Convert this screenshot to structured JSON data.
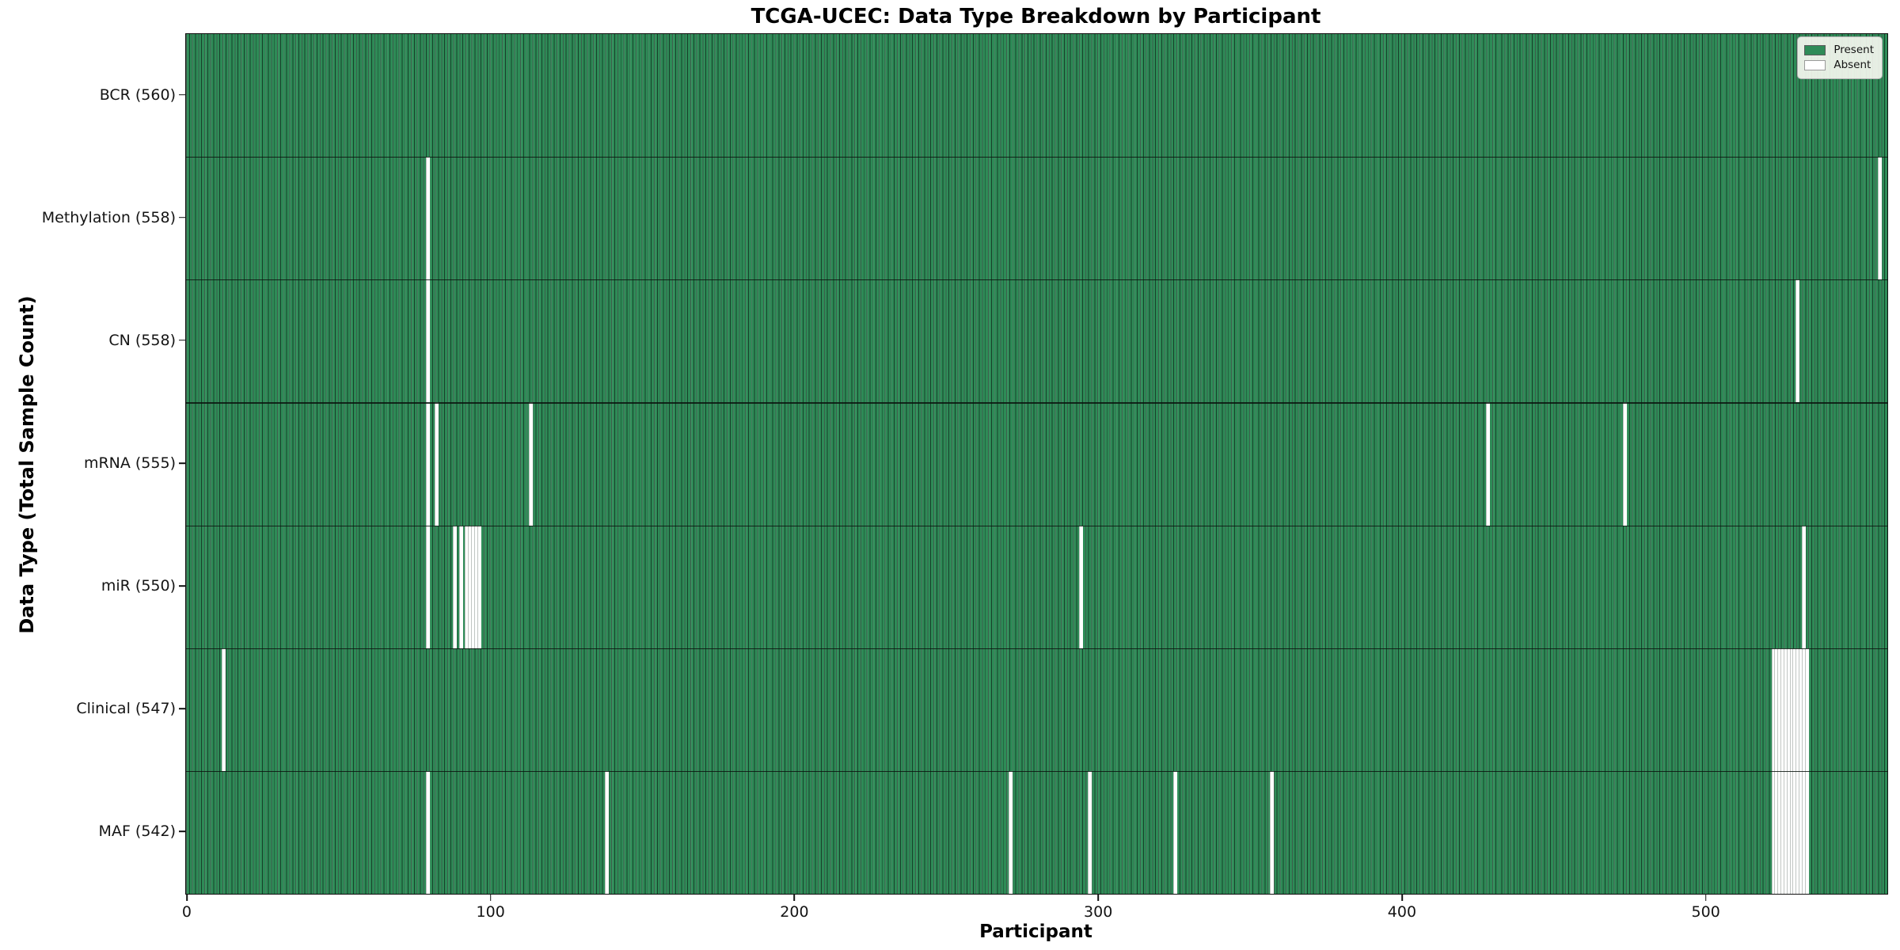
{
  "chart_data": {
    "type": "heatmap",
    "title": "TCGA-UCEC: Data Type Breakdown by Participant",
    "xlabel": "Participant",
    "ylabel": "Data Type (Total Sample Count)",
    "n_participants": 560,
    "x_ticks": [
      0,
      100,
      200,
      300,
      400,
      500
    ],
    "grid": false,
    "legend_position": "upper right",
    "legend": [
      {
        "label": "Present",
        "color": "#2e8b57"
      },
      {
        "label": "Absent",
        "color": "#ffffff"
      }
    ],
    "colors": {
      "present": "#2e8b57",
      "absent": "#ffffff",
      "bar_edge": "#17402a",
      "axis": "#111111"
    },
    "rows": [
      {
        "label": "BCR (560)",
        "data_type": "BCR",
        "total": 560,
        "absent_participants": []
      },
      {
        "label": "Methylation (558)",
        "data_type": "Methylation",
        "total": 558,
        "absent_participants": [
          79,
          557
        ]
      },
      {
        "label": "CN (558)",
        "data_type": "CN",
        "total": 558,
        "absent_participants": [
          79,
          530
        ]
      },
      {
        "label": "mRNA (555)",
        "data_type": "mRNA",
        "total": 555,
        "absent_participants": [
          79,
          82,
          113,
          428,
          473
        ]
      },
      {
        "label": "miR (550)",
        "data_type": "miR",
        "total": 550,
        "absent_participants": [
          79,
          88,
          90,
          92,
          93,
          94,
          95,
          96,
          294,
          532
        ]
      },
      {
        "label": "Clinical (547)",
        "data_type": "Clinical",
        "total": 547,
        "absent_participants": [
          12,
          522,
          523,
          524,
          525,
          526,
          527,
          528,
          529,
          530,
          531,
          532,
          533
        ]
      },
      {
        "label": "MAF (542)",
        "data_type": "MAF",
        "total": 542,
        "absent_participants": [
          79,
          138,
          271,
          297,
          325,
          357,
          522,
          523,
          524,
          525,
          526,
          527,
          528,
          529,
          530,
          531,
          532,
          533
        ]
      }
    ]
  }
}
